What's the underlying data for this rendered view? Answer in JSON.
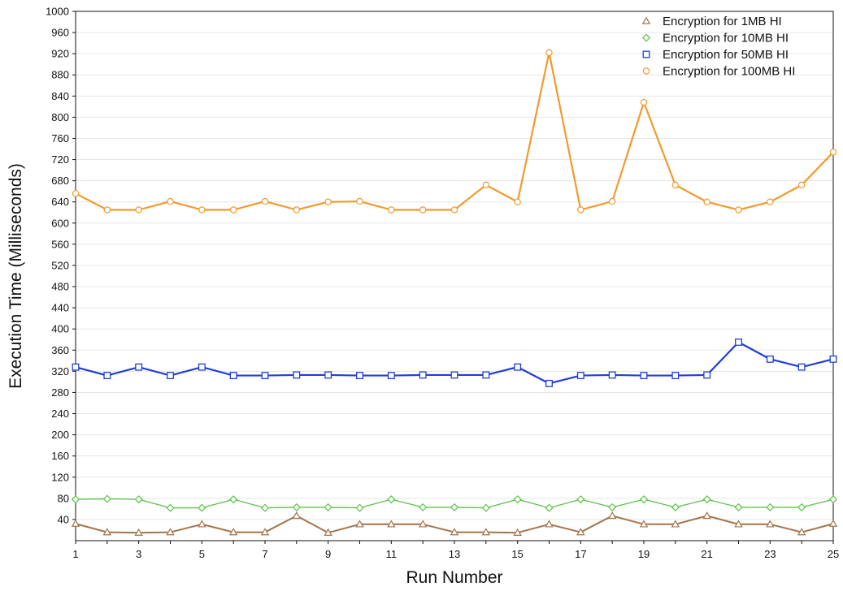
{
  "chart_data": {
    "type": "line",
    "title": "",
    "xlabel": "Run Number",
    "ylabel": "Execution Time (Milliseconds)",
    "xlim": [
      1,
      25
    ],
    "ylim": [
      0,
      1000
    ],
    "x_ticks": [
      "1",
      "3",
      "5",
      "7",
      "9",
      "11",
      "13",
      "15",
      "17",
      "19",
      "21",
      "23",
      "25"
    ],
    "y_ticks": [
      "40",
      "80",
      "120",
      "160",
      "200",
      "240",
      "280",
      "320",
      "360",
      "400",
      "440",
      "480",
      "520",
      "560",
      "600",
      "640",
      "680",
      "720",
      "760",
      "800",
      "840",
      "880",
      "920",
      "960",
      "1000"
    ],
    "grid": true,
    "legend_position": "top-right",
    "x": [
      1,
      2,
      3,
      4,
      5,
      6,
      7,
      8,
      9,
      10,
      11,
      12,
      13,
      14,
      15,
      16,
      17,
      18,
      19,
      20,
      21,
      22,
      23,
      24,
      25
    ],
    "series": [
      {
        "name": "Encryption for 1MB HI",
        "color": "#a5744a",
        "marker": "triangle",
        "values": [
          32,
          16,
          15,
          16,
          31,
          16,
          16,
          47,
          15,
          31,
          31,
          31,
          16,
          16,
          15,
          31,
          16,
          47,
          31,
          31,
          47,
          31,
          31,
          16,
          32
        ]
      },
      {
        "name": "Encryption for 10MB HI",
        "color": "#5cc24a",
        "marker": "diamond",
        "values": [
          78,
          79,
          78,
          62,
          62,
          78,
          62,
          63,
          63,
          62,
          78,
          63,
          63,
          62,
          78,
          62,
          78,
          63,
          78,
          63,
          78,
          63,
          63,
          63,
          78
        ]
      },
      {
        "name": "Encryption for 50MB HI",
        "color": "#1f3fd6",
        "marker": "square",
        "values": [
          328,
          312,
          328,
          312,
          328,
          312,
          312,
          313,
          313,
          312,
          312,
          313,
          313,
          313,
          328,
          297,
          312,
          313,
          312,
          312,
          313,
          375,
          343,
          328,
          343
        ]
      },
      {
        "name": "Encryption for 100MB HI",
        "color": "#f29a2e",
        "marker": "circle",
        "values": [
          656,
          625,
          625,
          641,
          625,
          625,
          641,
          625,
          640,
          641,
          625,
          625,
          625,
          672,
          640,
          922,
          625,
          641,
          828,
          672,
          640,
          625,
          640,
          672,
          734
        ]
      }
    ]
  }
}
